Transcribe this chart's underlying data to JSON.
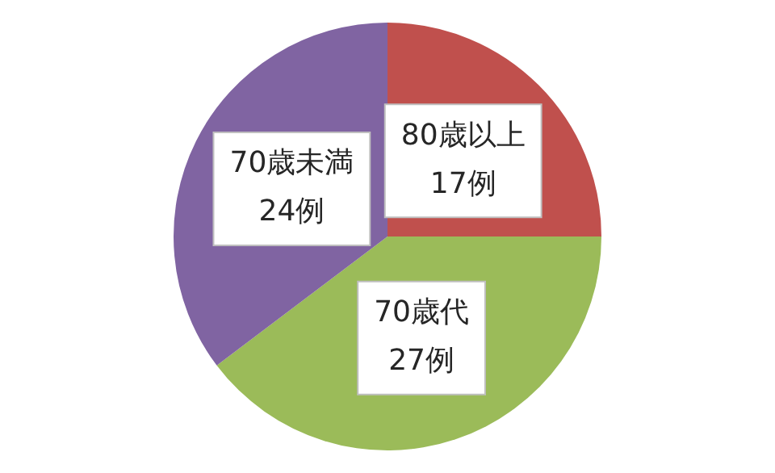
{
  "chart_data": {
    "type": "pie",
    "categories": [
      "80歳以上",
      "70歳代",
      "70歳未満"
    ],
    "values": [
      17,
      27,
      24
    ],
    "colors": [
      "#c0504d",
      "#9bbb59",
      "#8064a2"
    ],
    "value_labels": [
      "17例",
      "27例",
      "24例"
    ],
    "legend": false
  }
}
